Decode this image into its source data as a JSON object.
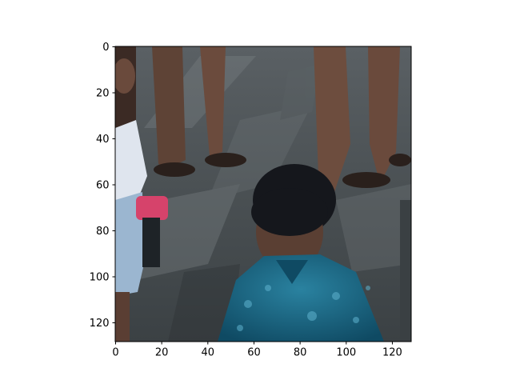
{
  "figure": {
    "image_description_name": "pixel-image",
    "xlim": [
      0,
      128
    ],
    "ylim": [
      128,
      0
    ],
    "x_ticks": [
      0,
      20,
      40,
      60,
      80,
      100,
      120
    ],
    "y_ticks": [
      0,
      20,
      40,
      60,
      80,
      100,
      120
    ],
    "x_tick_labels": [
      "0",
      "20",
      "40",
      "60",
      "80",
      "100",
      "120"
    ],
    "y_tick_labels": [
      "0",
      "20",
      "40",
      "60",
      "80",
      "100",
      "120"
    ],
    "colors": {
      "background": "#ffffff",
      "frame": "#000000",
      "pavement_dark": "#2e3336",
      "pavement_mid": "#4f5559",
      "pavement_light": "#737a7e",
      "skin": "#6a4a3c",
      "hair": "#15171c",
      "shirt": "#1c6b86",
      "shirt_dark": "#0f4a63",
      "jeans": "#9bb6d0",
      "pink": "#d6436b",
      "white_shirt": "#dfe5ee"
    }
  }
}
